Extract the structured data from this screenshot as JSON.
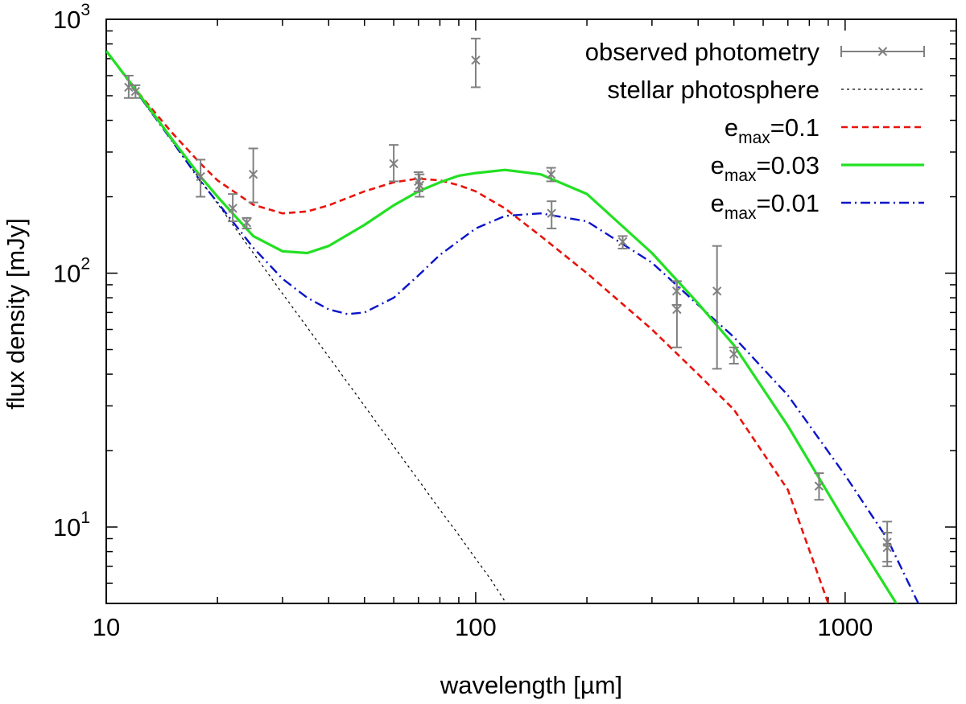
{
  "chart_data": {
    "type": "line",
    "xscale": "log",
    "yscale": "log",
    "xlabel": "wavelength [µm]",
    "ylabel": "flux density [mJy]",
    "xlim": [
      10,
      2000
    ],
    "ylim": [
      5,
      1000
    ],
    "x_ticks": [
      {
        "value": 10,
        "label": "10"
      },
      {
        "value": 100,
        "label": "100"
      },
      {
        "value": 1000,
        "label": "1000"
      }
    ],
    "y_ticks": [
      {
        "value": 10,
        "base": "10",
        "exp": "1"
      },
      {
        "value": 100,
        "base": "10",
        "exp": "2"
      },
      {
        "value": 1000,
        "base": "10",
        "exp": "3"
      }
    ],
    "legend": {
      "position": "top-right",
      "entries": [
        {
          "key": "obs",
          "label": "observed photometry"
        },
        {
          "key": "star",
          "label": "stellar photosphere"
        },
        {
          "key": "e01",
          "label_main": "e",
          "label_sub": "max",
          "label_rest": "=0.1"
        },
        {
          "key": "e003",
          "label_main": "e",
          "label_sub": "max",
          "label_rest": "=0.03"
        },
        {
          "key": "e001",
          "label_main": "e",
          "label_sub": "max",
          "label_rest": "=0.01"
        }
      ]
    },
    "observed_photometry": {
      "color": "#808080",
      "points": [
        {
          "x": 11.5,
          "y": 540,
          "lo": 490,
          "hi": 600
        },
        {
          "x": 12,
          "y": 520,
          "lo": 490,
          "hi": 550
        },
        {
          "x": 18,
          "y": 240,
          "lo": 200,
          "hi": 280
        },
        {
          "x": 22,
          "y": 180,
          "lo": 160,
          "hi": 205
        },
        {
          "x": 24,
          "y": 158,
          "lo": 150,
          "hi": 165
        },
        {
          "x": 25,
          "y": 245,
          "lo": 190,
          "hi": 310
        },
        {
          "x": 60,
          "y": 270,
          "lo": 230,
          "hi": 320
        },
        {
          "x": 70,
          "y": 230,
          "lo": 210,
          "hi": 250
        },
        {
          "x": 70.5,
          "y": 222,
          "lo": 200,
          "hi": 245
        },
        {
          "x": 100,
          "y": 690,
          "lo": 540,
          "hi": 840
        },
        {
          "x": 160,
          "y": 245,
          "lo": 230,
          "hi": 260
        },
        {
          "x": 160.5,
          "y": 172,
          "lo": 150,
          "hi": 192
        },
        {
          "x": 250,
          "y": 133,
          "lo": 125,
          "hi": 140
        },
        {
          "x": 350,
          "y": 85,
          "lo": 75,
          "hi": 93
        },
        {
          "x": 350.5,
          "y": 72,
          "lo": 51,
          "hi": 93
        },
        {
          "x": 450,
          "y": 85,
          "lo": 42,
          "hi": 128
        },
        {
          "x": 500,
          "y": 48,
          "lo": 44,
          "hi": 51
        },
        {
          "x": 850,
          "y": 14.5,
          "lo": 12.8,
          "hi": 16.3
        },
        {
          "x": 1300,
          "y": 8.7,
          "lo": 7.3,
          "hi": 10.5
        },
        {
          "x": 1300.5,
          "y": 8.3,
          "lo": 7.0,
          "hi": 9.5
        }
      ]
    },
    "series": [
      {
        "name": "stellar photosphere",
        "key": "star",
        "color": "#000000",
        "dash": "3,4",
        "width": 1.2,
        "x": [
          10,
          12,
          15,
          18,
          20,
          25,
          30,
          40,
          50,
          60,
          70,
          80,
          90,
          100,
          110,
          121
        ],
        "y": [
          750,
          520,
          335,
          232,
          188,
          120,
          83,
          46.9,
          30,
          20.8,
          15.3,
          11.7,
          9.3,
          7.5,
          6.2,
          5.0
        ]
      },
      {
        "name": "e_max=0.1",
        "key": "e01",
        "color": "#e8140c",
        "dash": "8,5",
        "width": 2.6,
        "x": [
          10,
          12,
          15,
          18,
          20,
          25,
          30,
          35,
          40,
          50,
          60,
          70,
          80,
          90,
          100,
          120,
          150,
          200,
          300,
          400,
          500,
          700,
          900
        ],
        "y": [
          750,
          530,
          360,
          270,
          232,
          186,
          172,
          175,
          185,
          210,
          228,
          236,
          232,
          222,
          210,
          180,
          140,
          100,
          60,
          40,
          29,
          14,
          5
        ]
      },
      {
        "name": "e_max=0.03",
        "key": "e003",
        "color": "#22e022",
        "dash": "",
        "width": 3.2,
        "x": [
          10,
          12,
          15,
          18,
          20,
          25,
          30,
          35,
          40,
          50,
          60,
          70,
          80,
          90,
          100,
          120,
          150,
          200,
          300,
          400,
          500,
          700,
          1000,
          1400
        ],
        "y": [
          750,
          530,
          340,
          240,
          200,
          140,
          122,
          120,
          128,
          155,
          185,
          210,
          228,
          242,
          248,
          255,
          245,
          205,
          120,
          76,
          52,
          25,
          10.5,
          4.8
        ]
      },
      {
        "name": "e_max=0.01",
        "key": "e001",
        "color": "#0a14c8",
        "dash": "12,5,2,5",
        "width": 2.4,
        "x": [
          10,
          12,
          15,
          18,
          20,
          25,
          30,
          35,
          40,
          45,
          50,
          60,
          70,
          80,
          100,
          120,
          150,
          200,
          300,
          400,
          500,
          700,
          1000,
          1300,
          1600
        ],
        "y": [
          750,
          525,
          335,
          230,
          190,
          126,
          95,
          80,
          72,
          69,
          70,
          80,
          98,
          118,
          150,
          168,
          172,
          160,
          110,
          75,
          56,
          33,
          16,
          9,
          4.8
        ]
      }
    ]
  }
}
